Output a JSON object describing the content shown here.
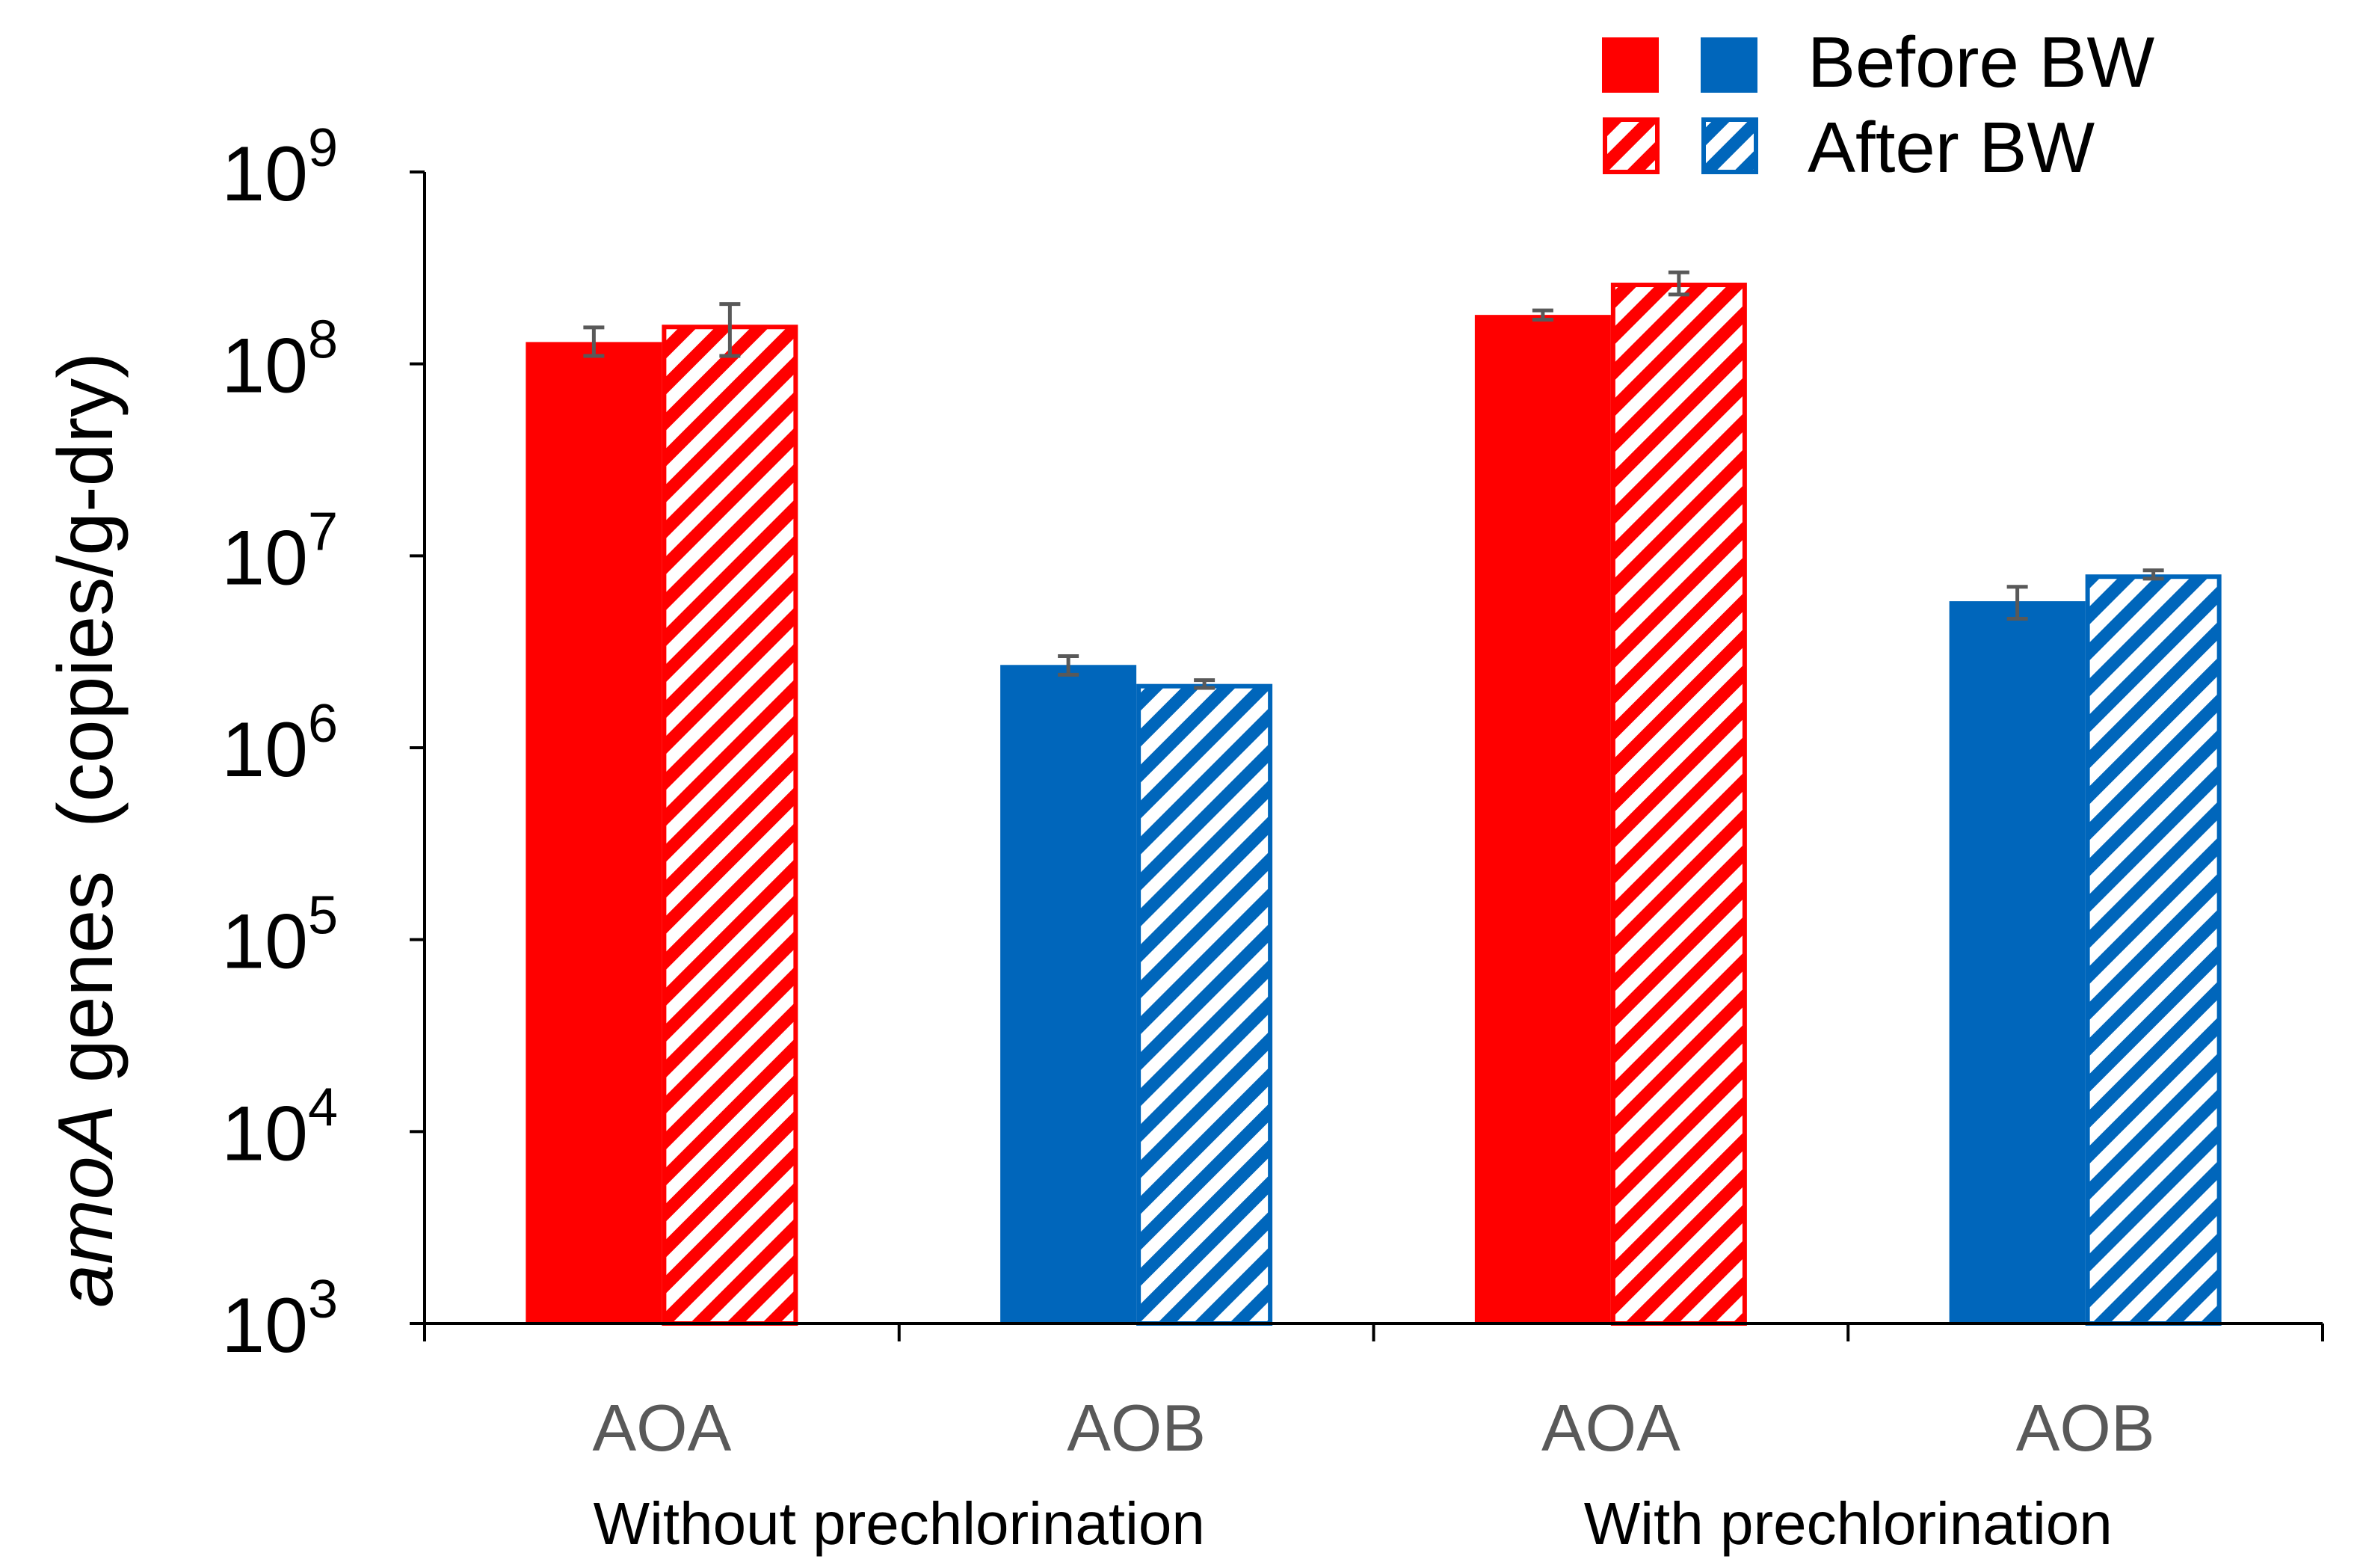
{
  "chart_data": {
    "type": "bar",
    "scale": "log",
    "ylim_exponents": [
      3,
      9
    ],
    "ylabel_italic": "amoA",
    "ylabel_rest": " genes  (copies/g-dry)",
    "ytick_base": "10",
    "ytick_exponents": [
      "3",
      "4",
      "5",
      "6",
      "7",
      "8",
      "9"
    ],
    "groups": [
      {
        "label": "Without prechlorination",
        "subcategories": [
          "AOA",
          "AOB"
        ]
      },
      {
        "label": "With prechlorination",
        "subcategories": [
          "AOA",
          "AOB"
        ]
      }
    ],
    "bars": [
      {
        "group": 0,
        "category": "AOA",
        "series": "Before BW",
        "value": 130000000,
        "err_low": 110000000,
        "err_high": 155000000,
        "color": "#ff0000",
        "pattern": "solid"
      },
      {
        "group": 0,
        "category": "AOA",
        "series": "After BW",
        "value": 160000000,
        "err_low": 110000000,
        "err_high": 205000000,
        "color": "#ff0000",
        "pattern": "hatched"
      },
      {
        "group": 0,
        "category": "AOB",
        "series": "Before BW",
        "value": 2700000,
        "err_low": 2400000,
        "err_high": 3000000,
        "color": "#0066bb",
        "pattern": "solid"
      },
      {
        "group": 0,
        "category": "AOB",
        "series": "After BW",
        "value": 2150000,
        "err_low": 2050000,
        "err_high": 2250000,
        "color": "#0066bb",
        "pattern": "hatched"
      },
      {
        "group": 1,
        "category": "AOA",
        "series": "Before BW",
        "value": 180000000,
        "err_low": 170000000,
        "err_high": 190000000,
        "color": "#ff0000",
        "pattern": "solid"
      },
      {
        "group": 1,
        "category": "AOA",
        "series": "After BW",
        "value": 265000000,
        "err_low": 230000000,
        "err_high": 300000000,
        "color": "#ff0000",
        "pattern": "hatched"
      },
      {
        "group": 1,
        "category": "AOB",
        "series": "Before BW",
        "value": 5800000,
        "err_low": 4700000,
        "err_high": 6900000,
        "color": "#0066bb",
        "pattern": "solid"
      },
      {
        "group": 1,
        "category": "AOB",
        "series": "After BW",
        "value": 8000000,
        "err_low": 7600000,
        "err_high": 8400000,
        "color": "#0066bb",
        "pattern": "hatched"
      }
    ],
    "legend": {
      "placement": "top-right",
      "entries": [
        {
          "label": "Before BW",
          "pattern": "solid",
          "colors": [
            "#ff0000",
            "#0066bb"
          ]
        },
        {
          "label": "After BW",
          "pattern": "hatched",
          "colors": [
            "#ff0000",
            "#0066bb"
          ]
        }
      ]
    },
    "colors": {
      "aoa": "#ff0000",
      "aob": "#0066bb",
      "error_bar": "#595959",
      "category_text": "#595959",
      "axis": "#000000"
    }
  }
}
